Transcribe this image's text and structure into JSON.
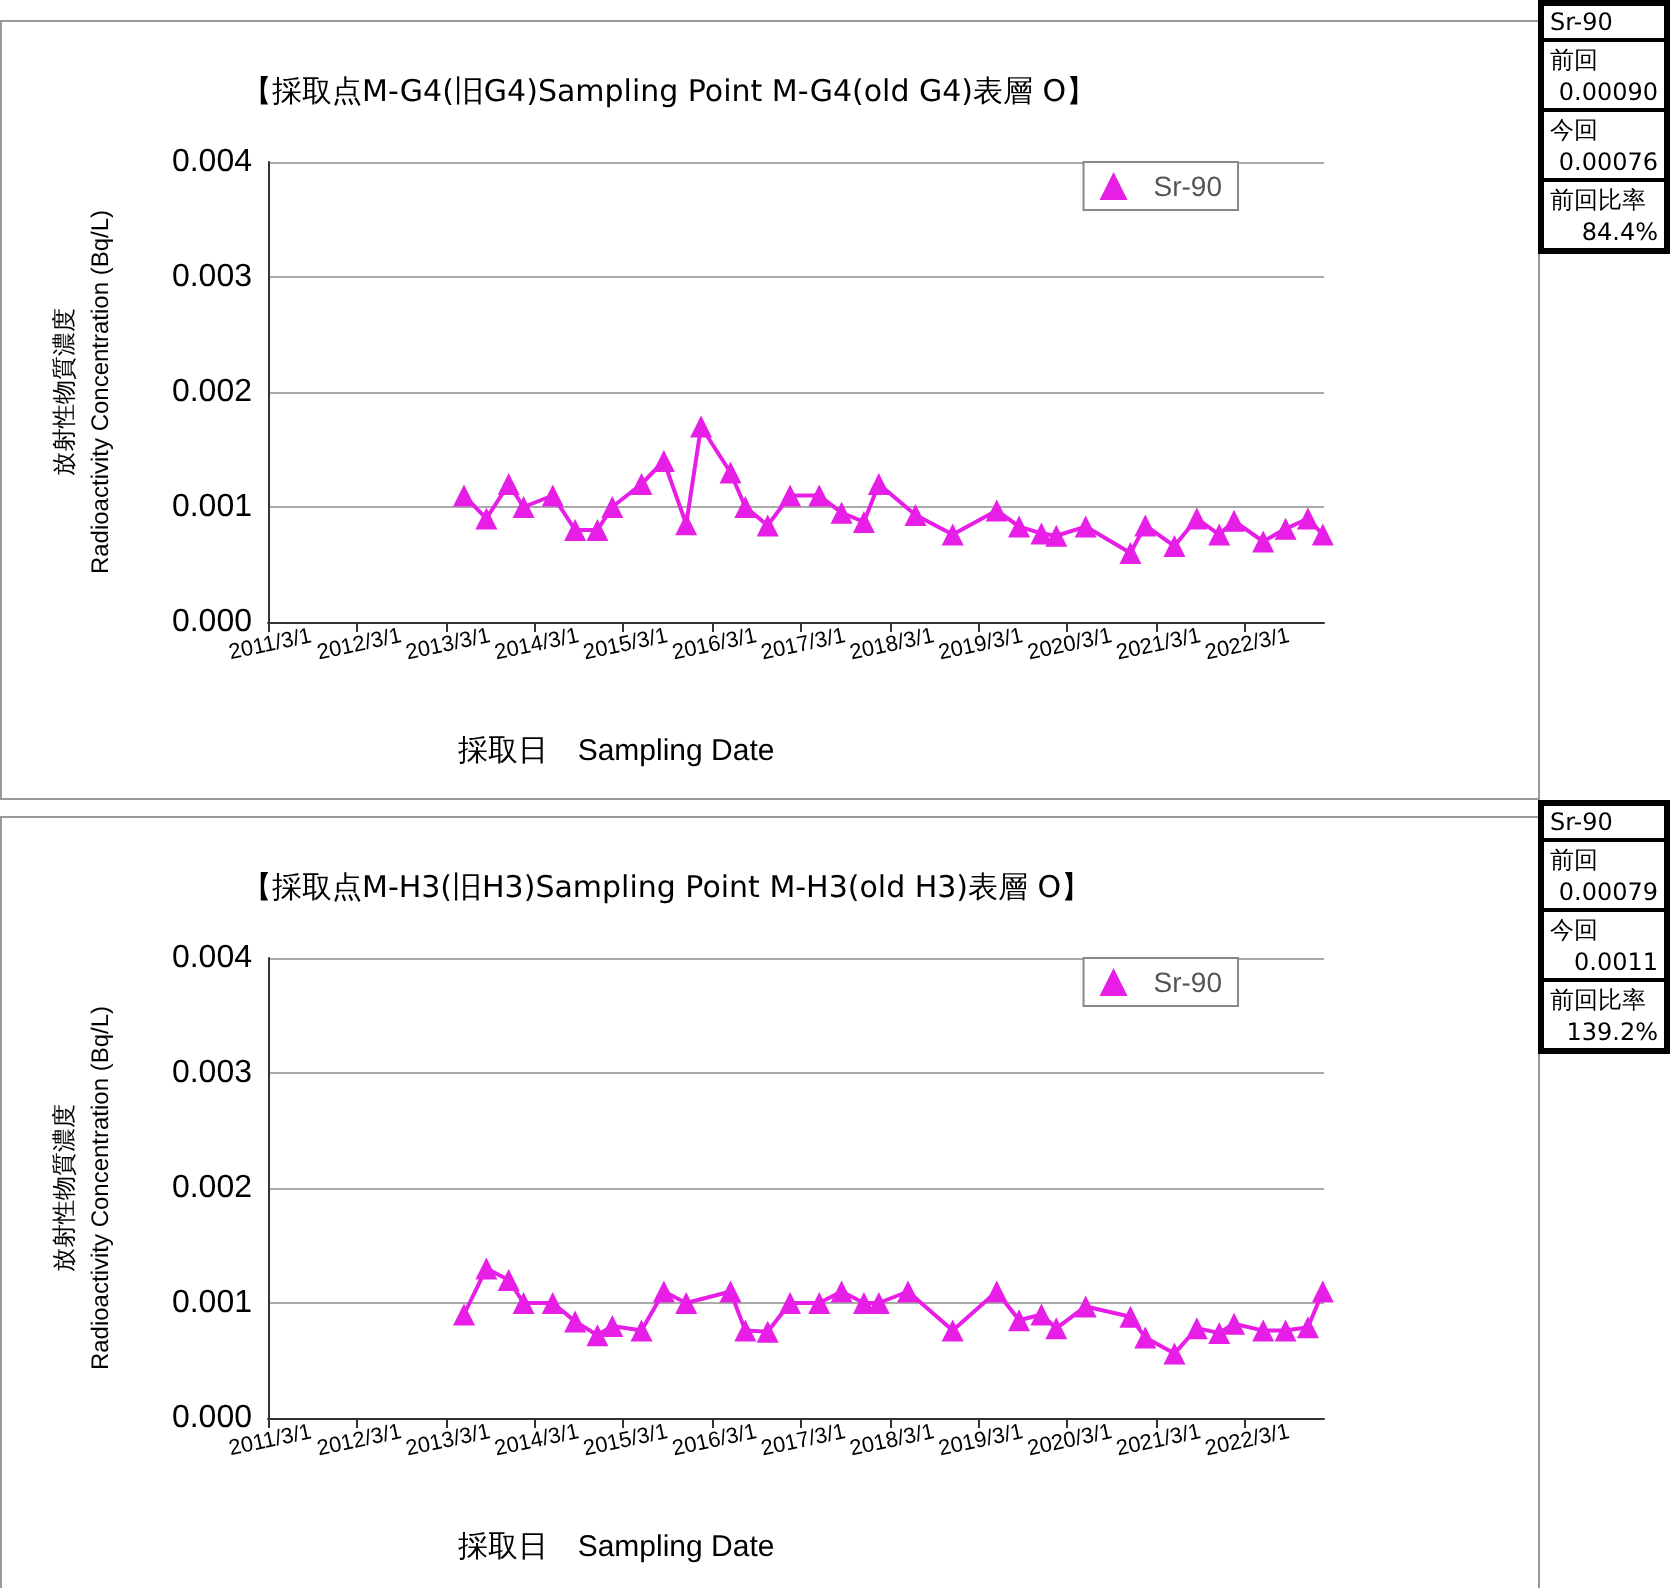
{
  "chart_data": [
    {
      "type": "line",
      "title": "【採取点M-G4(旧G4)Sampling Point M-G4(old G4)表層 O】",
      "xlabel": "採取日　Sampling Date",
      "ylabel": "放射性物質濃度\nRadioactivity Concentration (Bq/L)",
      "x": [
        "2013-05-15",
        "2013-08-15",
        "2013-11-15",
        "2014-01-15",
        "2014-05-15",
        "2014-08-15",
        "2014-11-15",
        "2015-01-15",
        "2015-05-15",
        "2015-08-15",
        "2015-11-15",
        "2016-01-15",
        "2016-05-15",
        "2016-07-15",
        "2016-10-15",
        "2017-01-15",
        "2017-05-15",
        "2017-08-15",
        "2017-11-15",
        "2018-01-15",
        "2018-06-15",
        "2018-11-15",
        "2019-05-15",
        "2019-08-15",
        "2019-11-15",
        "2020-01-15",
        "2020-05-15",
        "2020-11-15",
        "2021-01-15",
        "2021-05-15",
        "2021-08-15",
        "2021-11-15",
        "2022-01-15",
        "2022-05-15",
        "2022-08-15",
        "2022-11-15",
        "2023-01-15"
      ],
      "series": [
        {
          "name": "Sr-90",
          "color": "#e61ee6",
          "values": [
            0.0011,
            0.0009,
            0.0012,
            0.001,
            0.0011,
            0.0008,
            0.0008,
            0.001,
            0.0012,
            0.0014,
            0.00085,
            0.0017,
            0.0013,
            0.001,
            0.00084,
            0.0011,
            0.0011,
            0.00095,
            0.00087,
            0.0012,
            0.00093,
            0.00076,
            0.00097,
            0.00083,
            0.00077,
            0.00075,
            0.00083,
            0.0006,
            0.00084,
            0.00066,
            0.0009,
            0.00076,
            0.00088,
            0.0007,
            0.00081,
            0.0009,
            0.00076
          ]
        }
      ],
      "xlim": [
        "2011-03-01",
        "2023-01-20"
      ],
      "xticks": [
        {
          "value": "2011-03-01",
          "label": "2011/3/1"
        },
        {
          "value": "2012-03-01",
          "label": "2012/3/1"
        },
        {
          "value": "2013-03-01",
          "label": "2013/3/1"
        },
        {
          "value": "2014-03-01",
          "label": "2014/3/1"
        },
        {
          "value": "2015-03-01",
          "label": "2015/3/1"
        },
        {
          "value": "2016-03-01",
          "label": "2016/3/1"
        },
        {
          "value": "2017-03-01",
          "label": "2017/3/1"
        },
        {
          "value": "2018-03-01",
          "label": "2018/3/1"
        },
        {
          "value": "2019-03-01",
          "label": "2019/3/1"
        },
        {
          "value": "2020-03-01",
          "label": "2020/3/1"
        },
        {
          "value": "2021-03-01",
          "label": "2021/3/1"
        },
        {
          "value": "2022-03-01",
          "label": "2022/3/1"
        }
      ],
      "ylim": [
        0,
        0.004
      ],
      "yticks": [
        {
          "value": 0,
          "label": "0.000"
        },
        {
          "value": 0.001,
          "label": "0.001"
        },
        {
          "value": 0.002,
          "label": "0.002"
        },
        {
          "value": 0.003,
          "label": "0.003"
        },
        {
          "value": 0.004,
          "label": "0.004"
        }
      ],
      "grid": "y",
      "legend": "top right",
      "marker": "triangle",
      "line_style": "solid"
    },
    {
      "type": "other",
      "title": "Sr-90",
      "annotations": [
        "前回",
        "0.00090",
        "今回",
        "0.00076",
        "前回比率",
        "84.4%"
      ]
    },
    {
      "type": "line",
      "title": "【採取点M-H3(旧H3)Sampling Point M-H3(old H3)表層 O】",
      "xlabel": "採取日　Sampling Date",
      "ylabel": "放射性物質濃度\nRadioactivity Concentration (Bq/L)",
      "x": [
        "2013-05-15",
        "2013-08-15",
        "2013-11-15",
        "2014-01-15",
        "2014-05-15",
        "2014-08-15",
        "2014-11-15",
        "2015-01-15",
        "2015-05-15",
        "2015-08-15",
        "2015-11-15",
        "2016-05-15",
        "2016-07-15",
        "2016-10-15",
        "2017-01-15",
        "2017-05-15",
        "2017-08-15",
        "2017-11-15",
        "2018-01-15",
        "2018-05-15",
        "2018-11-15",
        "2019-05-15",
        "2019-08-15",
        "2019-11-15",
        "2020-01-15",
        "2020-05-15",
        "2020-11-15",
        "2021-01-15",
        "2021-05-15",
        "2021-08-15",
        "2021-11-15",
        "2022-01-15",
        "2022-05-15",
        "2022-08-15",
        "2022-11-15",
        "2023-01-15"
      ],
      "series": [
        {
          "name": "Sr-90",
          "color": "#e61ee6",
          "values": [
            0.0009,
            0.0013,
            0.0012,
            0.001,
            0.001,
            0.00084,
            0.00072,
            0.0008,
            0.00076,
            0.0011,
            0.001,
            0.0011,
            0.00076,
            0.00075,
            0.001,
            0.001,
            0.0011,
            0.001,
            0.001,
            0.0011,
            0.00076,
            0.0011,
            0.00085,
            0.0009,
            0.00078,
            0.00097,
            0.00088,
            0.0007,
            0.00056,
            0.00078,
            0.00074,
            0.00082,
            0.00076,
            0.00076,
            0.00079,
            0.0011
          ]
        }
      ],
      "xlim": [
        "2011-03-01",
        "2023-01-20"
      ],
      "xticks": [
        {
          "value": "2011-03-01",
          "label": "2011/3/1"
        },
        {
          "value": "2012-03-01",
          "label": "2012/3/1"
        },
        {
          "value": "2013-03-01",
          "label": "2013/3/1"
        },
        {
          "value": "2014-03-01",
          "label": "2014/3/1"
        },
        {
          "value": "2015-03-01",
          "label": "2015/3/1"
        },
        {
          "value": "2016-03-01",
          "label": "2016/3/1"
        },
        {
          "value": "2017-03-01",
          "label": "2017/3/1"
        },
        {
          "value": "2018-03-01",
          "label": "2018/3/1"
        },
        {
          "value": "2019-03-01",
          "label": "2019/3/1"
        },
        {
          "value": "2020-03-01",
          "label": "2020/3/1"
        },
        {
          "value": "2021-03-01",
          "label": "2021/3/1"
        },
        {
          "value": "2022-03-01",
          "label": "2022/3/1"
        }
      ],
      "ylim": [
        0,
        0.004
      ],
      "yticks": [
        {
          "value": 0,
          "label": "0.000"
        },
        {
          "value": 0.001,
          "label": "0.001"
        },
        {
          "value": 0.002,
          "label": "0.002"
        },
        {
          "value": 0.003,
          "label": "0.003"
        },
        {
          "value": 0.004,
          "label": "0.004"
        }
      ],
      "grid": "y",
      "legend": "top right",
      "marker": "triangle",
      "line_style": "solid"
    },
    {
      "type": "other",
      "title": "Sr-90",
      "annotations": [
        "前回",
        "0.00079",
        "今回",
        "0.0011",
        "前回比率",
        "139.2%"
      ]
    }
  ]
}
